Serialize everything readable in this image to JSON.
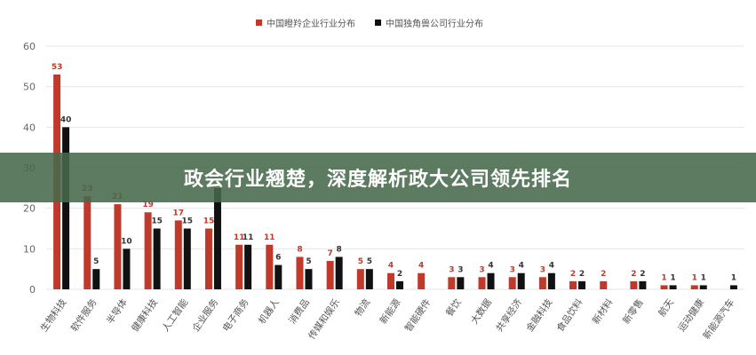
{
  "banner": {
    "title": "政会行业翘楚，深度解析政大公司领先排名"
  },
  "colors": {
    "series1": "#c0392b",
    "series2": "#111111",
    "grid": "#e6e6e6",
    "axis_text": "#666666",
    "banner_bg": "#46694b"
  },
  "chart_data": {
    "type": "bar",
    "categories": [
      "生物科技",
      "软件服务",
      "半导体",
      "健康科技",
      "人工智能",
      "企业服务",
      "电子商务",
      "机器人",
      "消费品",
      "传媒和娱乐",
      "物流",
      "新能源",
      "智能硬件",
      "餐饮",
      "大数据",
      "共享经济",
      "金融科技",
      "食品饮料",
      "新材料",
      "新零售",
      "航天",
      "运动健康",
      "新能源汽车"
    ],
    "series": [
      {
        "name": "中国瞪羚企业行业分布",
        "values": [
          53,
          23,
          21,
          19,
          17,
          15,
          11,
          11,
          8,
          7,
          5,
          4,
          4,
          3,
          3,
          3,
          3,
          2,
          2,
          2,
          1,
          1,
          null
        ]
      },
      {
        "name": "中国独角兽公司行业分布",
        "values": [
          40,
          5,
          10,
          15,
          15,
          25,
          11,
          6,
          5,
          8,
          5,
          2,
          null,
          3,
          4,
          4,
          4,
          2,
          null,
          2,
          1,
          1,
          1
        ]
      }
    ],
    "labels": [
      [
        "53",
        "23",
        "21",
        "19",
        "17",
        "15",
        "11",
        "11",
        "8",
        "7",
        "5",
        "4",
        "4",
        "3",
        "3",
        "3",
        "3",
        "2",
        "2",
        "2",
        "1",
        "1",
        ""
      ],
      [
        "40",
        "5",
        "10",
        "15",
        "15",
        "",
        "11",
        "6",
        "5",
        "8",
        "5",
        "2",
        "",
        "3",
        "4",
        "4",
        "4",
        "2",
        "",
        "2",
        "1",
        "1",
        "1"
      ]
    ],
    "yticks": [
      0,
      10,
      20,
      30,
      40,
      50,
      60
    ],
    "ylim": [
      0,
      60
    ],
    "grid": true,
    "legend_position": "top-center"
  }
}
